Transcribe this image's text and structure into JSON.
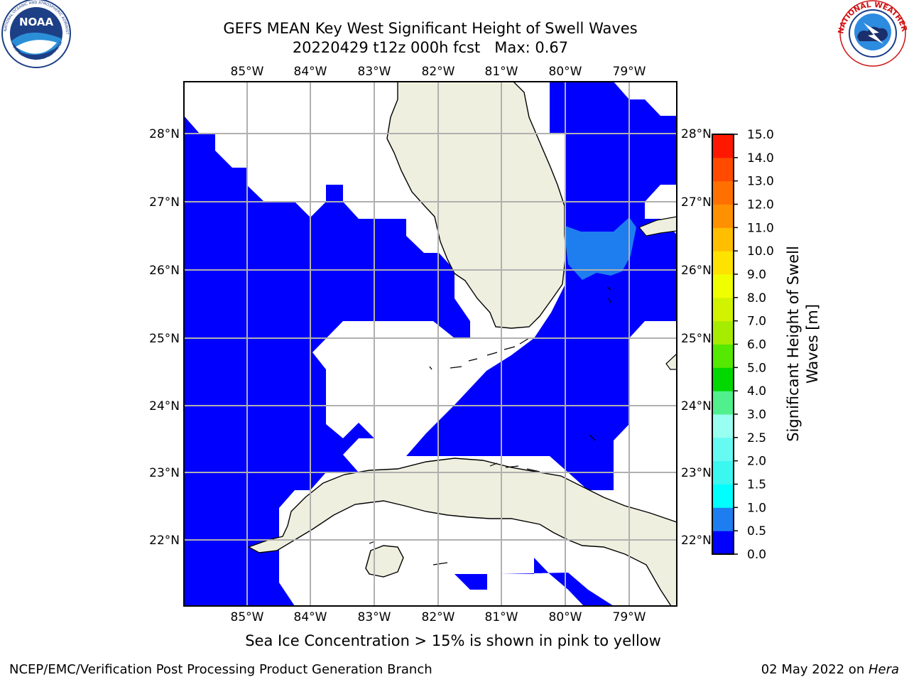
{
  "title": {
    "line1": "GEFS MEAN Key West Significant Height of Swell Waves",
    "line2": "20220429 t12z 000h fcst   Max: 0.67"
  },
  "note": "Sea Ice Concentration > 15% is shown in pink to yellow",
  "footer": {
    "left": "NCEP/EMC/Verification Post Processing Product Generation Branch",
    "right_prefix": "02 May 2022 on ",
    "right_host": "Hera"
  },
  "logos": {
    "left": "NOAA",
    "left_ring": "NATIONAL OCEANIC AND ATMOSPHERIC ADMINISTRATION",
    "left_ring_bottom": "U.S. DEPARTMENT OF COMMERCE",
    "right_ring": "NATIONAL WEATHER SERVICE"
  },
  "map": {
    "lon_ticks": [
      "85°W",
      "84°W",
      "83°W",
      "82°W",
      "81°W",
      "80°W",
      "79°W"
    ],
    "lat_ticks": [
      "28°N",
      "27°N",
      "26°N",
      "25°N",
      "24°N",
      "23°N",
      "22°N"
    ],
    "colors": {
      "land": "#efefdf",
      "ocean_low": "#0000ff",
      "ocean_mid": "#1e90ff",
      "grid": "#b0b0b0"
    }
  },
  "colorbar": {
    "label_line1": "Significant Height of Swell",
    "label_line2": "Waves [m]",
    "ticks": [
      "0.0",
      "0.5",
      "1.0",
      "1.5",
      "2.0",
      "2.5",
      "3.0",
      "4.0",
      "5.0",
      "6.0",
      "7.0",
      "8.0",
      "9.0",
      "10.0",
      "11.0",
      "12.0",
      "13.0",
      "14.0",
      "15.0"
    ],
    "colors": [
      "#0000ff",
      "#1e7ef0",
      "#00ffff",
      "#3cf6f0",
      "#66faf2",
      "#99fff0",
      "#50f08c",
      "#00d800",
      "#55e800",
      "#a6ec00",
      "#d2f300",
      "#f0ff00",
      "#ffe300",
      "#ffbe00",
      "#ff9000",
      "#ff7000",
      "#ff4a00",
      "#ff1800"
    ]
  }
}
